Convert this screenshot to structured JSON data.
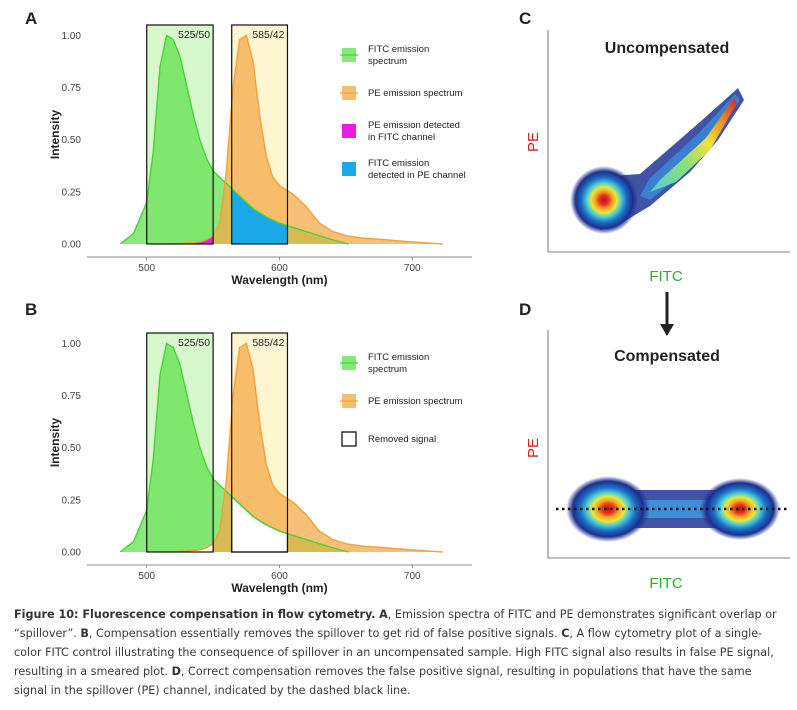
{
  "chart_data": [
    {
      "type": "area",
      "panel": "A",
      "xlabel": "Wavelength (nm)",
      "ylabel": "Intensity",
      "xlim": [
        455,
        745
      ],
      "ylim": [
        0,
        1.05
      ],
      "xticks": [
        500,
        600,
        700
      ],
      "yticks": [
        "0.00",
        "0.25",
        "0.50",
        "0.75",
        "1.00"
      ],
      "grid": false,
      "legend_position": "right",
      "filters": [
        {
          "label": "525/50",
          "x_range": [
            500,
            550
          ],
          "color": "#c8f5b8"
        },
        {
          "label": "585/42",
          "x_range": [
            564,
            606
          ],
          "color": "#fdf2c2"
        }
      ],
      "series": [
        {
          "name": "FITC emission spectrum",
          "color": "#5de04a",
          "x": [
            480,
            490,
            500,
            505,
            510,
            515,
            520,
            525,
            530,
            535,
            540,
            545,
            550,
            555,
            560,
            565,
            570,
            575,
            580,
            590,
            600,
            610,
            620,
            630,
            640,
            652
          ],
          "y": [
            0.0,
            0.05,
            0.2,
            0.45,
            0.85,
            1.0,
            0.98,
            0.9,
            0.76,
            0.62,
            0.5,
            0.41,
            0.35,
            0.32,
            0.29,
            0.26,
            0.23,
            0.2,
            0.17,
            0.13,
            0.1,
            0.08,
            0.06,
            0.04,
            0.02,
            0.0
          ]
        },
        {
          "name": "PE emission spectrum",
          "color": "#f5a742",
          "x": [
            520,
            530,
            540,
            545,
            550,
            555,
            560,
            565,
            570,
            575,
            580,
            585,
            590,
            595,
            600,
            605,
            610,
            615,
            620,
            625,
            630,
            640,
            650,
            660,
            680,
            700,
            723
          ],
          "y": [
            0.0,
            0.005,
            0.01,
            0.02,
            0.04,
            0.1,
            0.35,
            0.75,
            0.98,
            1.0,
            0.88,
            0.62,
            0.42,
            0.32,
            0.28,
            0.26,
            0.24,
            0.21,
            0.18,
            0.14,
            0.1,
            0.06,
            0.04,
            0.03,
            0.02,
            0.01,
            0.0
          ]
        },
        {
          "name": "PE emission detected in FITC channel",
          "color": "#e91ee0"
        },
        {
          "name": "FITC emission detected in PE channel",
          "color": "#1aa8e8"
        }
      ]
    },
    {
      "type": "area",
      "panel": "B",
      "xlabel": "Wavelength (nm)",
      "ylabel": "Intensity",
      "xlim": [
        455,
        745
      ],
      "ylim": [
        0,
        1.05
      ],
      "xticks": [
        500,
        600,
        700
      ],
      "yticks": [
        "0.00",
        "0.25",
        "0.50",
        "0.75",
        "1.00"
      ],
      "grid": false,
      "legend_position": "right",
      "filters": [
        {
          "label": "525/50",
          "x_range": [
            500,
            550
          ],
          "color": "#c8f5b8"
        },
        {
          "label": "585/42",
          "x_range": [
            564,
            606
          ],
          "color": "#fdf2c2"
        }
      ],
      "series": [
        {
          "name": "FITC emission spectrum",
          "color": "#5de04a"
        },
        {
          "name": "PE emission spectrum",
          "color": "#f5a742"
        },
        {
          "name": "Removed signal",
          "color": "#ffffff"
        }
      ]
    },
    {
      "type": "scatter",
      "panel": "C",
      "title": "Uncompensated",
      "xlabel": "FITC",
      "ylabel": "PE",
      "populations": [
        {
          "name": "FITC-negative",
          "x": 0.18,
          "y": 0.22,
          "spread": 0.07
        },
        {
          "name": "FITC-positive smeared",
          "x_range": [
            0.3,
            0.98
          ],
          "y_range": [
            0.34,
            0.95
          ]
        }
      ]
    },
    {
      "type": "scatter",
      "panel": "D",
      "title": "Compensated",
      "xlabel": "FITC",
      "ylabel": "PE",
      "populations": [
        {
          "name": "FITC-negative",
          "x": 0.22,
          "y": 0.43
        },
        {
          "name": "FITC-positive",
          "x": 0.82,
          "y": 0.43
        }
      ],
      "reference_line": "dashed black horizontal line through both populations"
    }
  ],
  "panel_labels": {
    "a": "A",
    "b": "B",
    "c": "C",
    "d": "D"
  },
  "colors": {
    "axis_label_fitc": "#2eaa2e",
    "axis_label_pe": "#d62020"
  },
  "caption": {
    "title": "Figure 10: Fluorescence compensation in flow cytometry.",
    "label_a": "A",
    "text_a": ", Emission spectra of FITC and PE demonstrates significant overlap or “spillover”.",
    "label_b": "B",
    "text_b": ", Compensation essentially removes the spillover to get rid of false positive signals.",
    "label_c": "C",
    "text_c": ", A flow cytometry plot of a single-color FITC control illustrating the consequence of spillover in an uncompensated sample. High FITC signal also results in false PE signal, resulting in a smeared plot.",
    "label_d": "D",
    "text_d": ", Correct compensation removes the false positive signal, resulting in populations that have the same signal in the spillover (PE) channel, indicated by the dashed black line."
  }
}
